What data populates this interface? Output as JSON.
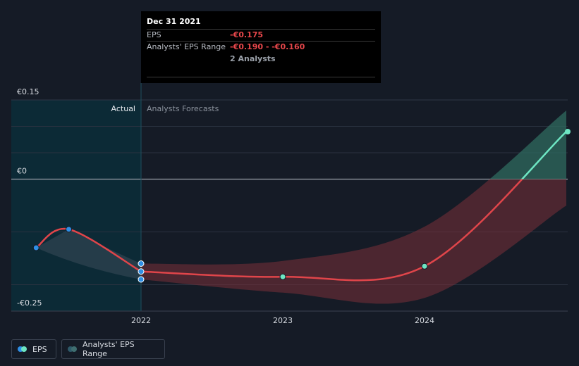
{
  "tooltip": {
    "date": "Dec 31 2021",
    "eps_label": "EPS",
    "eps_value": "-€0.175",
    "range_label": "Analysts' EPS Range",
    "range_value": "-€0.190 - -€0.160",
    "analysts": "2 Analysts"
  },
  "regions": {
    "actual": "Actual",
    "forecast": "Analysts Forecasts"
  },
  "legend": {
    "eps": "EPS",
    "range": "Analysts' EPS Range"
  },
  "colors": {
    "background": "#151b26",
    "actual_region": "#0c2a36",
    "eps_actual": "#2f8fe6",
    "eps_forecast": "#e0454a",
    "eps_positive": "#6ee6c3",
    "range_fill": "#7a2f38",
    "range_positive_fill": "#2f6b5f",
    "actual_range_fill": "#3a4a5a"
  },
  "chart_data": {
    "type": "line",
    "ylim": [
      -0.25,
      0.15
    ],
    "y_ticks": [
      {
        "value": 0.15,
        "label": "€0.15"
      },
      {
        "value": 0,
        "label": "€0"
      },
      {
        "value": -0.25,
        "label": "-€0.25"
      }
    ],
    "x_ticks": [
      {
        "value": 2022.0,
        "label": "2022"
      },
      {
        "value": 2023.0,
        "label": "2023"
      },
      {
        "value": 2024.0,
        "label": "2024"
      }
    ],
    "actual_end": 2022.0,
    "series": [
      {
        "name": "EPS",
        "actual": [
          {
            "x": 2021.26,
            "y": -0.13
          },
          {
            "x": 2021.49,
            "y": -0.095
          },
          {
            "x": 2022.0,
            "y": -0.175
          }
        ],
        "forecast": [
          {
            "x": 2022.0,
            "y": -0.175
          },
          {
            "x": 2023.0,
            "y": -0.185
          },
          {
            "x": 2024.0,
            "y": -0.165
          },
          {
            "x": 2025.0,
            "y": 0.09
          }
        ]
      },
      {
        "name": "Analysts' EPS Range",
        "range_points": [
          {
            "x": 2022.0,
            "low": -0.19,
            "high": -0.16
          }
        ],
        "forecast_low": [
          {
            "x": 2022.0,
            "y": -0.19
          },
          {
            "x": 2023.0,
            "y": -0.215
          },
          {
            "x": 2024.0,
            "y": -0.225
          },
          {
            "x": 2025.0,
            "y": -0.05
          }
        ],
        "forecast_high": [
          {
            "x": 2022.0,
            "y": -0.16
          },
          {
            "x": 2023.0,
            "y": -0.155
          },
          {
            "x": 2024.0,
            "y": -0.09
          },
          {
            "x": 2025.0,
            "y": 0.13
          }
        ]
      }
    ]
  }
}
